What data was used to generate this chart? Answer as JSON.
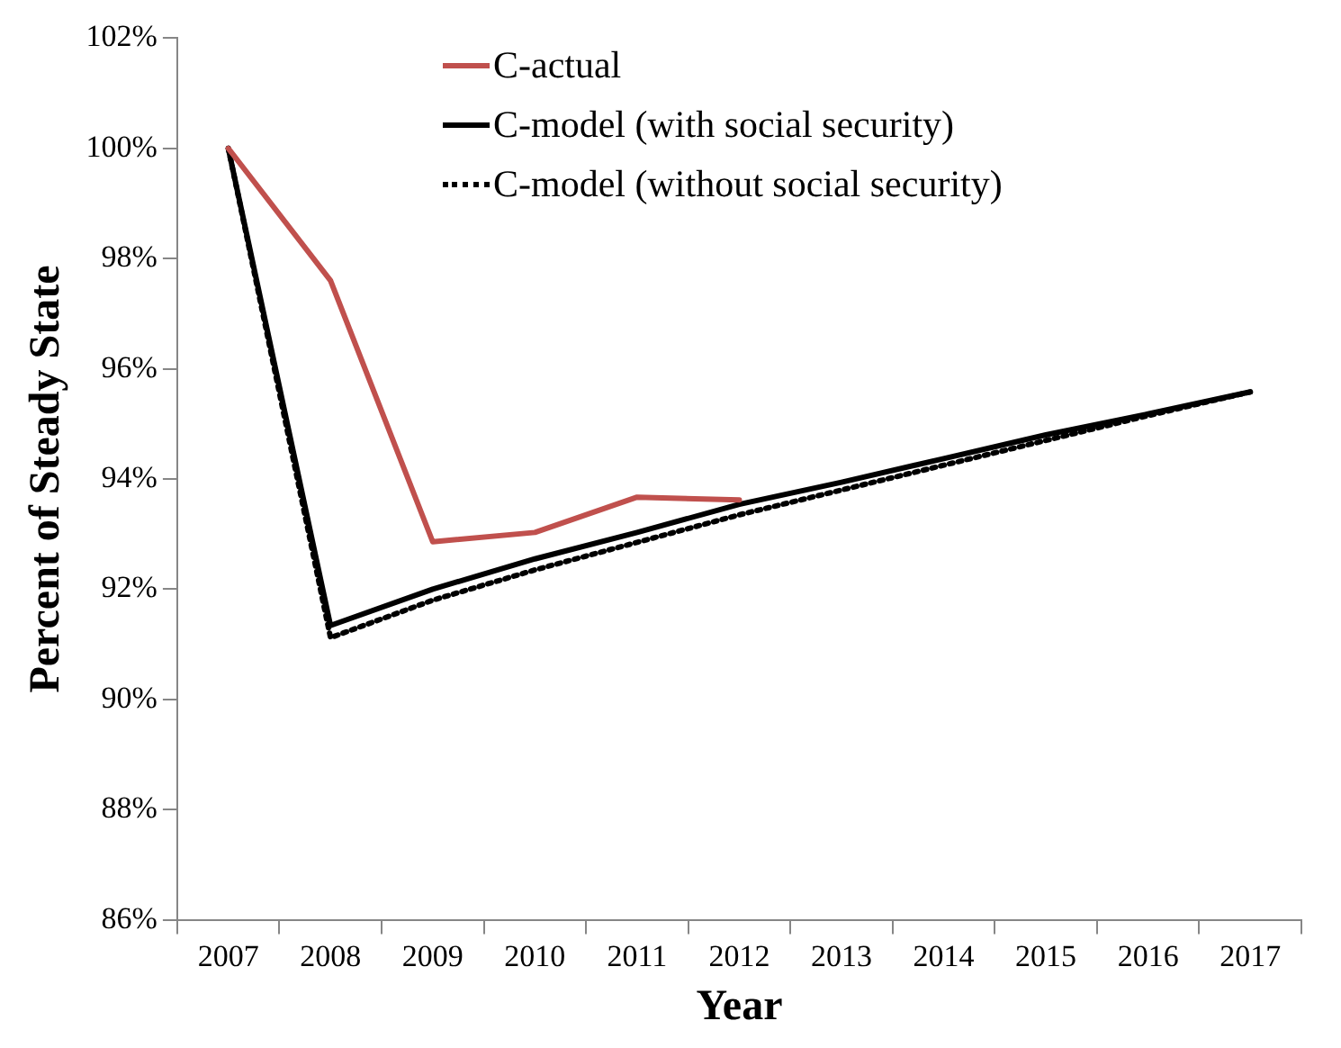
{
  "chart_data": {
    "type": "line",
    "xlabel": "Year",
    "ylabel": "Percent of Steady State",
    "categories": [
      "2007",
      "2008",
      "2009",
      "2010",
      "2011",
      "2012",
      "2013",
      "2014",
      "2015",
      "2016",
      "2017"
    ],
    "series": [
      {
        "name": "C-actual",
        "color": "#c0504d",
        "line_style": "solid",
        "values": [
          100,
          97.6,
          92.86,
          93.03,
          93.67,
          93.62,
          null,
          null,
          null,
          null,
          null
        ]
      },
      {
        "name": "C-model (with social security)",
        "color": "#000000",
        "line_style": "solid",
        "values": [
          100,
          91.34,
          92.0,
          92.55,
          93.03,
          93.54,
          93.94,
          94.37,
          94.8,
          95.18,
          95.58
        ]
      },
      {
        "name": "C-model (without social security)",
        "color": "#000000",
        "line_style": "dotted",
        "values": [
          100,
          91.12,
          91.8,
          92.35,
          92.85,
          93.35,
          93.8,
          94.25,
          94.7,
          95.15,
          95.58
        ]
      }
    ],
    "ylim": [
      86,
      102
    ],
    "yticks": [
      {
        "value": 86,
        "label": "86%"
      },
      {
        "value": 88,
        "label": "88%"
      },
      {
        "value": 90,
        "label": "90%"
      },
      {
        "value": 92,
        "label": "92%"
      },
      {
        "value": 94,
        "label": "94%"
      },
      {
        "value": 96,
        "label": "96%"
      },
      {
        "value": 98,
        "label": "98%"
      },
      {
        "value": 100,
        "label": "100%"
      },
      {
        "value": 102,
        "label": "102%"
      }
    ],
    "grid": false,
    "legend": "top",
    "marker": "none"
  }
}
